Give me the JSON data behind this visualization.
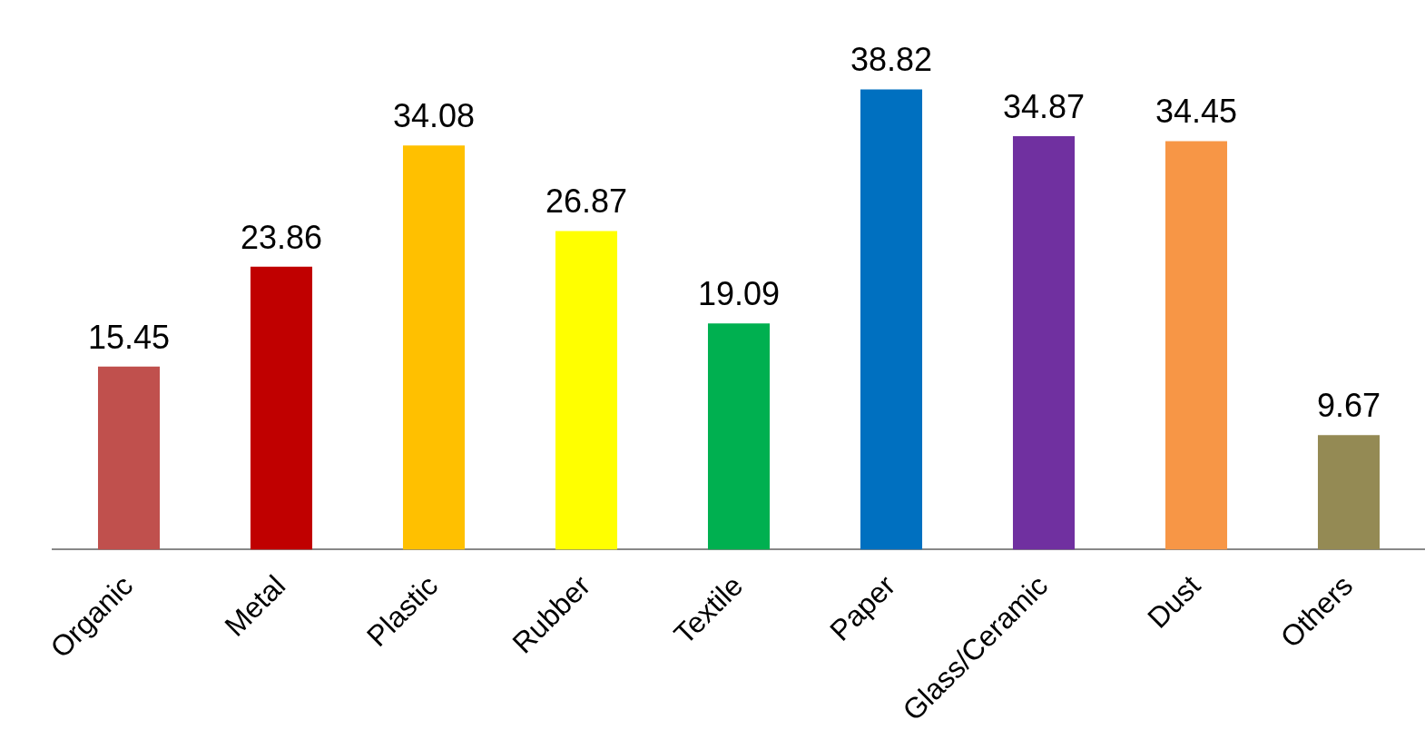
{
  "chart_data": {
    "type": "bar",
    "categories": [
      "Organic",
      "Metal",
      "Plastic",
      "Rubber",
      "Textile",
      "Paper",
      "Glass/Ceramic",
      "Dust",
      "Others"
    ],
    "values": [
      15.45,
      23.86,
      34.08,
      26.87,
      19.09,
      38.82,
      34.87,
      34.45,
      9.67
    ],
    "colors": [
      "#c0504d",
      "#c00000",
      "#ffc000",
      "#ffff00",
      "#00b050",
      "#0070c0",
      "#7030a0",
      "#f79646",
      "#948a54"
    ],
    "data_labels": true,
    "grid": false,
    "legend": false,
    "tick_labels": "x"
  }
}
